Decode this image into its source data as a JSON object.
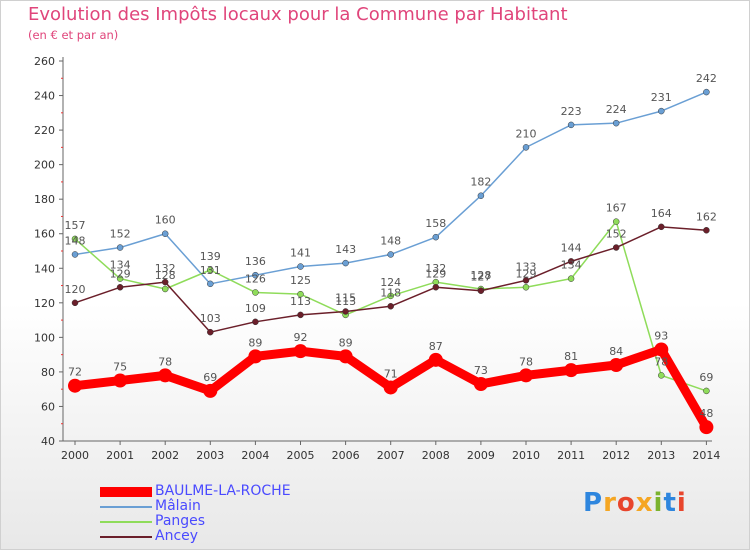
{
  "title": "Evolution des Impôts locaux pour la Commune par Habitant",
  "subtitle": "(en € et par an)",
  "logo": {
    "letters": [
      "P",
      "r",
      "o",
      "x",
      "i",
      "t",
      "i"
    ],
    "colors": [
      "#2e86de",
      "#f5a623",
      "#e8452c",
      "#f5a623",
      "#7bb32e",
      "#2e86de",
      "#e8452c"
    ]
  },
  "chart_data": {
    "type": "line",
    "title": "Evolution des Impôts locaux pour la Commune par Habitant",
    "ylabel": "(en € et par an)",
    "ylim": [
      40,
      260
    ],
    "yticks": [
      40,
      60,
      80,
      100,
      120,
      140,
      160,
      180,
      200,
      220,
      240,
      260
    ],
    "grid": false,
    "legend_position": "bottom-left",
    "x": [
      "2000",
      "2001",
      "2002",
      "2003",
      "2004",
      "2005",
      "2006",
      "2007",
      "2008",
      "2009",
      "2010",
      "2011",
      "2012",
      "2013",
      "2014"
    ],
    "series": [
      {
        "name": "BAULME-LA-ROCHE",
        "color": "#ff0000",
        "values": [
          72,
          75,
          78,
          69,
          89,
          92,
          89,
          71,
          87,
          73,
          78,
          81,
          84,
          93,
          48
        ]
      },
      {
        "name": "Mâlain",
        "color": "#6a9fd4",
        "values": [
          148,
          152,
          160,
          131,
          136,
          141,
          143,
          148,
          158,
          182,
          210,
          223,
          224,
          231,
          242
        ]
      },
      {
        "name": "Panges",
        "color": "#8fdc5a",
        "values": [
          157,
          134,
          128,
          139,
          126,
          125,
          113,
          124,
          132,
          128,
          129,
          134,
          167,
          78,
          69
        ]
      },
      {
        "name": "Ancey",
        "color": "#6b1f2a",
        "values": [
          120,
          129,
          132,
          103,
          109,
          113,
          115,
          118,
          129,
          127,
          133,
          144,
          152,
          164,
          162
        ]
      }
    ]
  }
}
